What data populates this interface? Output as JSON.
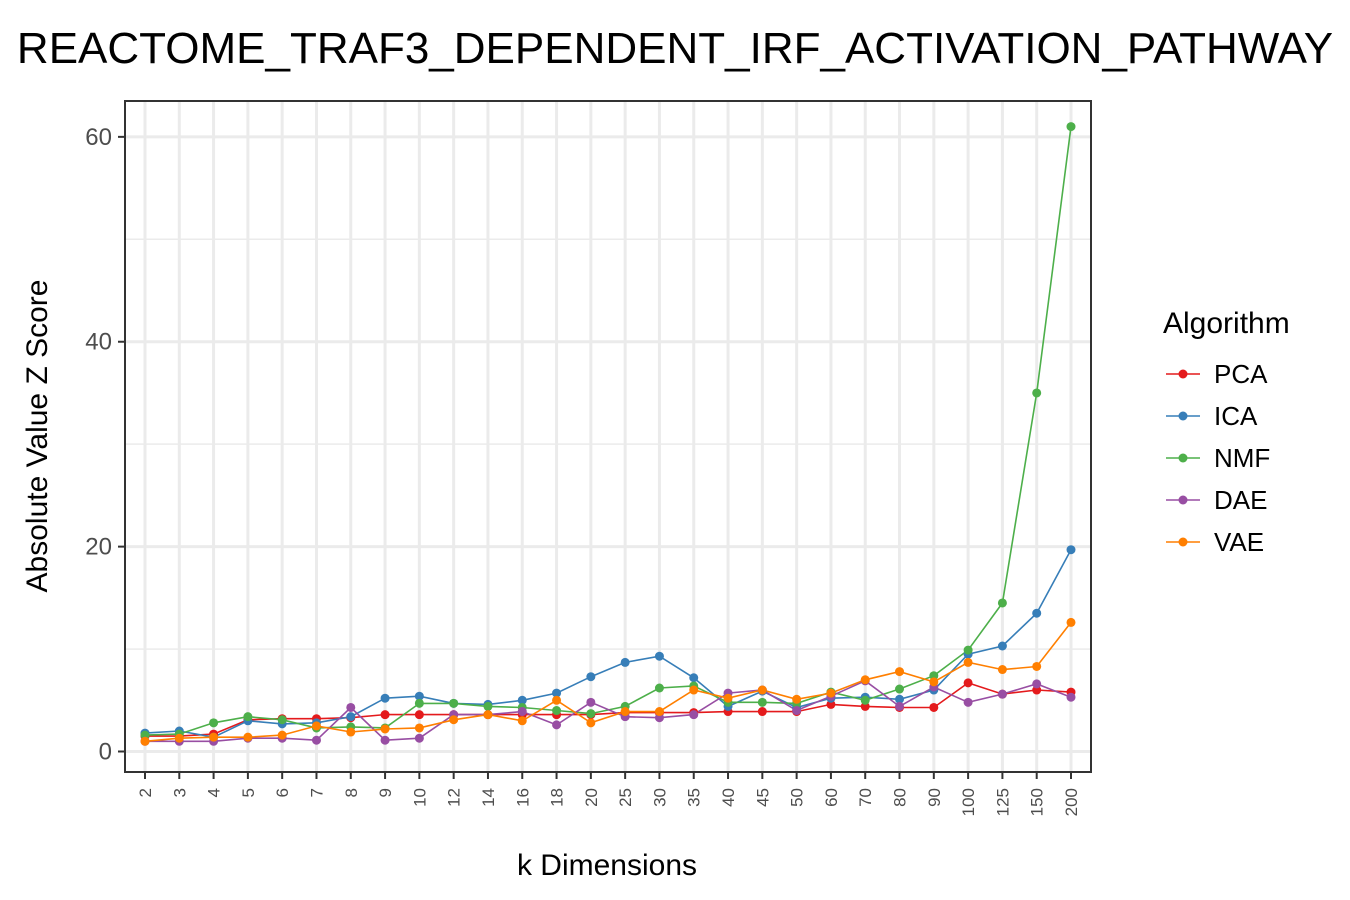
{
  "chart_data": {
    "type": "line",
    "title": "REACTOME_TRAF3_DEPENDENT_IRF_ACTIVATION_PATHWAY",
    "xlabel": "k Dimensions",
    "ylabel": "Absolute Value Z Score",
    "categories": [
      "2",
      "3",
      "4",
      "5",
      "6",
      "7",
      "8",
      "9",
      "10",
      "12",
      "14",
      "16",
      "18",
      "20",
      "25",
      "30",
      "35",
      "40",
      "45",
      "50",
      "60",
      "70",
      "80",
      "90",
      "100",
      "125",
      "150",
      "200"
    ],
    "ylim": [
      -2,
      63.5
    ],
    "yticks": [
      0,
      20,
      40,
      60
    ],
    "grid": true,
    "legend_title": "Algorithm",
    "legend_position": "right",
    "series": [
      {
        "name": "PCA",
        "color": "#e41a1c",
        "values": [
          1.5,
          1.5,
          1.7,
          3.1,
          3.2,
          3.2,
          3.3,
          3.6,
          3.6,
          3.6,
          3.6,
          3.6,
          3.6,
          3.6,
          3.8,
          3.8,
          3.8,
          3.9,
          3.9,
          3.9,
          4.6,
          4.4,
          4.3,
          4.3,
          6.7,
          5.6,
          6.0,
          5.8
        ]
      },
      {
        "name": "ICA",
        "color": "#377eb8",
        "values": [
          1.8,
          2.0,
          1.4,
          3.0,
          2.7,
          2.8,
          3.4,
          5.2,
          5.4,
          4.7,
          4.6,
          5.0,
          5.7,
          7.3,
          8.7,
          9.3,
          7.2,
          4.4,
          5.9,
          4.3,
          5.2,
          5.3,
          5.1,
          6.0,
          9.5,
          10.3,
          13.5,
          19.7
        ]
      },
      {
        "name": "NMF",
        "color": "#4daf4a",
        "values": [
          1.6,
          1.7,
          2.8,
          3.4,
          3.1,
          2.3,
          2.4,
          2.3,
          4.7,
          4.7,
          4.4,
          4.3,
          4.0,
          3.7,
          4.4,
          6.2,
          6.4,
          4.8,
          4.8,
          4.7,
          5.8,
          5.0,
          6.1,
          7.4,
          9.9,
          14.5,
          35.0,
          61.0
        ]
      },
      {
        "name": "DAE",
        "color": "#984ea3",
        "values": [
          1.0,
          1.0,
          1.0,
          1.3,
          1.3,
          1.1,
          4.3,
          1.1,
          1.3,
          3.6,
          3.6,
          3.9,
          2.6,
          4.8,
          3.4,
          3.3,
          3.6,
          5.7,
          6.0,
          4.0,
          5.4,
          6.9,
          4.4,
          6.3,
          4.8,
          5.6,
          6.6,
          5.3
        ]
      },
      {
        "name": "VAE",
        "color": "#ff7f00",
        "values": [
          1.0,
          1.3,
          1.4,
          1.4,
          1.6,
          2.5,
          1.9,
          2.2,
          2.3,
          3.1,
          3.6,
          3.0,
          5.0,
          2.8,
          3.9,
          3.9,
          6.0,
          5.2,
          6.0,
          5.1,
          5.7,
          7.0,
          7.8,
          6.8,
          8.7,
          8.0,
          8.3,
          12.6
        ]
      }
    ]
  }
}
